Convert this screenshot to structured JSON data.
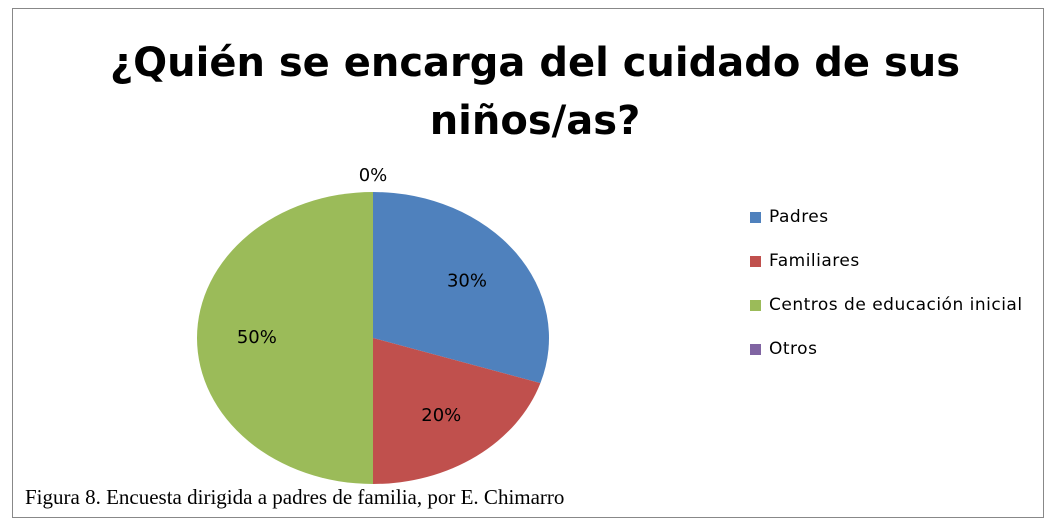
{
  "chart_data": {
    "type": "pie",
    "title": "¿Quién se encarga del cuidado de sus niños/as?",
    "categories": [
      "Padres",
      "Familiares",
      "Centros de educación inicial",
      "Otros"
    ],
    "values": [
      30,
      20,
      50,
      0
    ],
    "value_labels": [
      "30%",
      "20%",
      "50%",
      "0%"
    ],
    "colors": [
      "#4f81bd",
      "#c0504d",
      "#9bbb59",
      "#8064a2"
    ],
    "legend": "right",
    "caption": "Figura 8. Encuesta dirigida a padres de familia, por E. Chimarro"
  }
}
